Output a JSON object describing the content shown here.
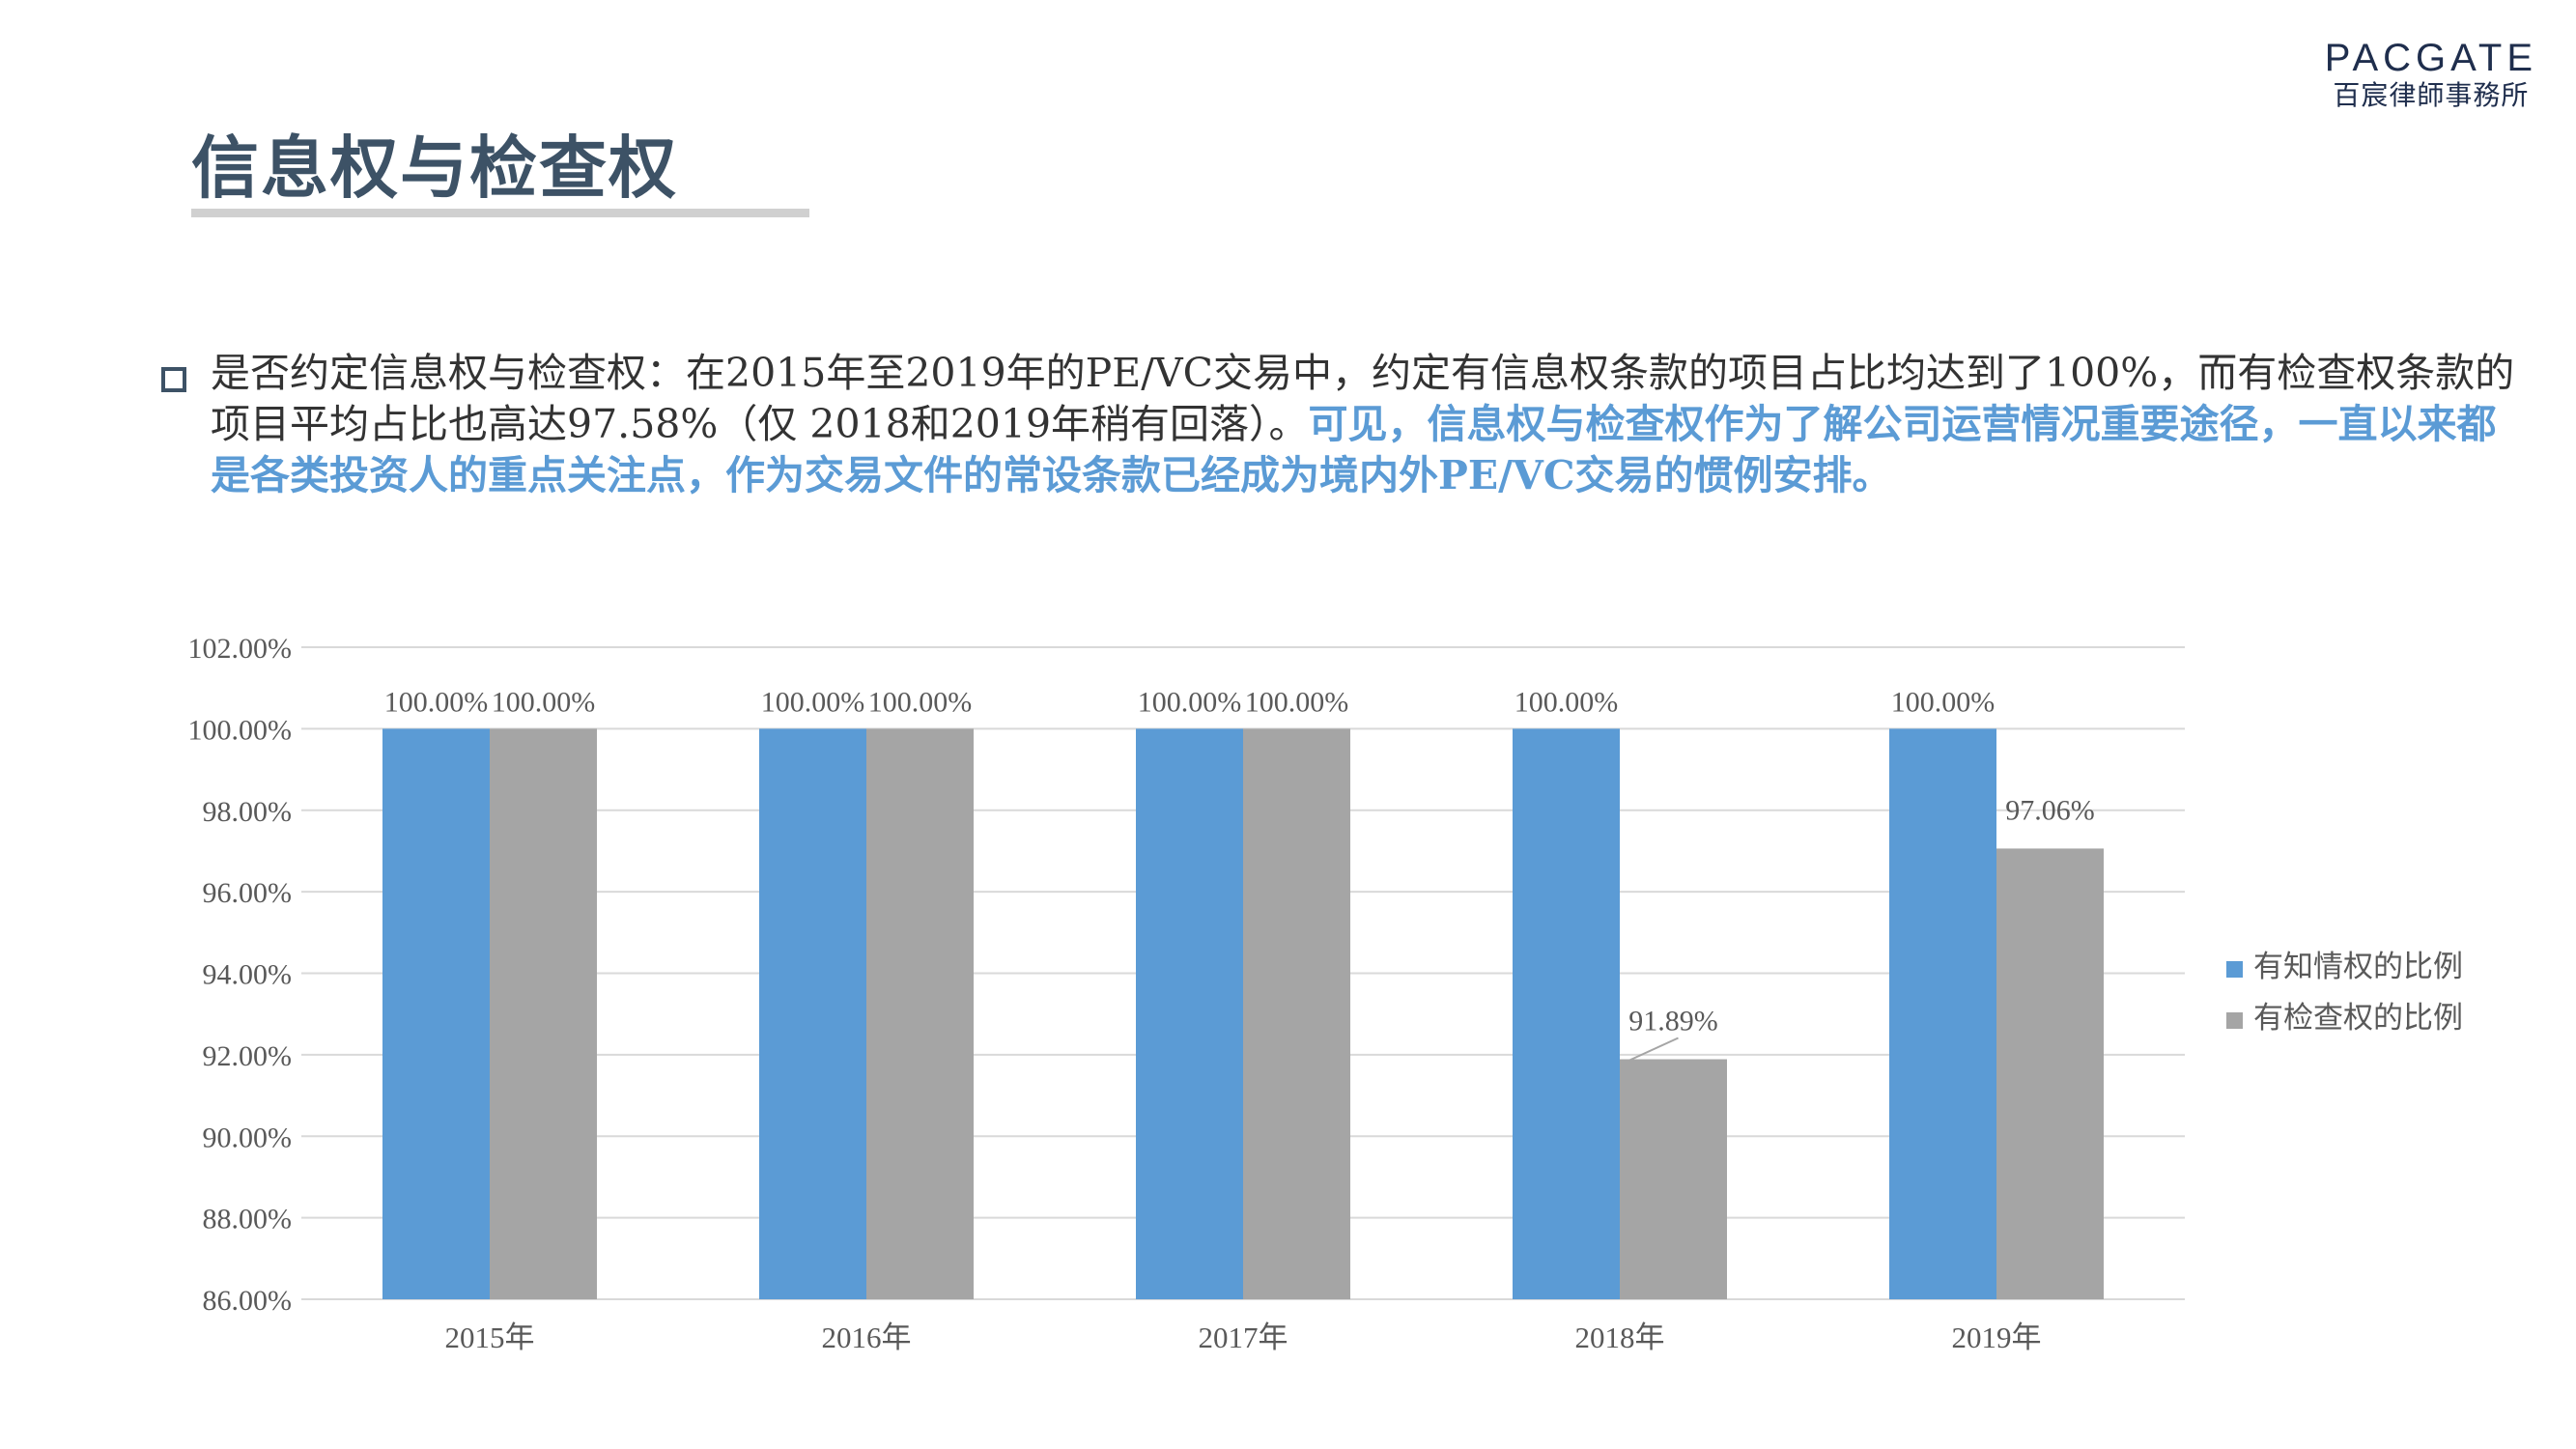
{
  "logo": {
    "name_en": "PACGATE",
    "name_cn": "百宸律師事務所"
  },
  "page_title": "信息权与检查权",
  "body": {
    "normal_text": "是否约定信息权与检查权：在2015年至2019年的PE/VC交易中，约定有信息权条款的项目占比均达到了100%，而有检查权条款的项目平均占比也高达97.58%（仅 2018和2019年稍有回落）。",
    "highlight_text": "可见，信息权与检查权作为了解公司运营情况重要途径，一直以来都是各类投资人的重点关注点，作为交易文件的常设条款已经成为境内外PE/VC交易的惯例安排。"
  },
  "colors": {
    "series1": "#5b9bd5",
    "series2": "#a5a5a5",
    "highlight": "#5b9bd5",
    "title": "#3d5266"
  },
  "chart_data": {
    "type": "bar",
    "categories": [
      "2015年",
      "2016年",
      "2017年",
      "2018年",
      "2019年"
    ],
    "series": [
      {
        "name": "有知情权的比例",
        "values": [
          100.0,
          100.0,
          100.0,
          100.0,
          100.0
        ],
        "labels": [
          "100.00%",
          "100.00%",
          "100.00%",
          "100.00%",
          "100.00%"
        ]
      },
      {
        "name": "有检查权的比例",
        "values": [
          100.0,
          100.0,
          100.0,
          91.89,
          97.06
        ],
        "labels": [
          "100.00%",
          "100.00%",
          "100.00%",
          "91.89%",
          "97.06%"
        ]
      }
    ],
    "ylim": [
      86,
      102
    ],
    "yticks": [
      "86.00%",
      "88.00%",
      "90.00%",
      "92.00%",
      "94.00%",
      "96.00%",
      "98.00%",
      "100.00%",
      "102.00%"
    ],
    "grid": true,
    "legend_position": "right"
  }
}
